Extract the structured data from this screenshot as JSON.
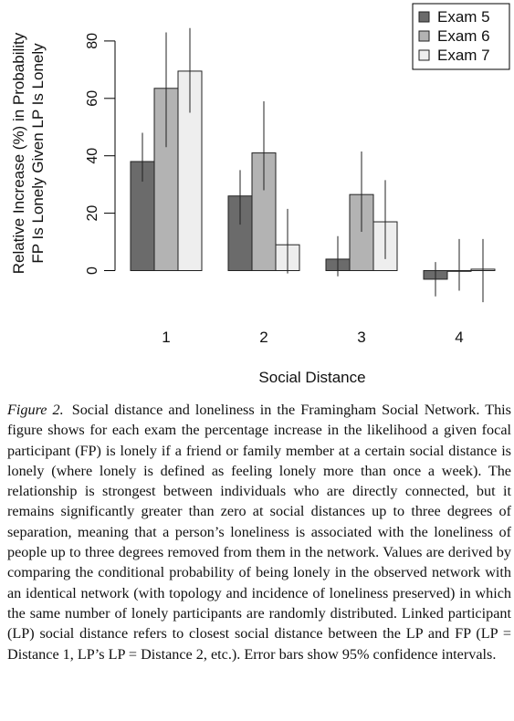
{
  "chart_data": {
    "type": "bar",
    "xlabel": "Social Distance",
    "ylabel_lines": [
      "Relative Increase (%) in Probability",
      "FP Is Lonely Given LP Is Lonely"
    ],
    "categories": [
      "1",
      "2",
      "3",
      "4"
    ],
    "yticks": [
      0,
      20,
      40,
      60,
      80
    ],
    "ylim": [
      -12,
      92
    ],
    "grid": false,
    "legend_position": "top-right",
    "series": [
      {
        "name": "Exam 5",
        "color": "#6b6b6b",
        "values": [
          38,
          26,
          4,
          -3
        ],
        "ci_low": [
          31,
          16,
          -2,
          -9
        ],
        "ci_high": [
          48,
          35,
          12,
          3
        ]
      },
      {
        "name": "Exam 6",
        "color": "#b3b3b3",
        "values": [
          63.5,
          41,
          26.5,
          0
        ],
        "ci_low": [
          43,
          28,
          13.5,
          -7
        ],
        "ci_high": [
          83,
          59,
          41.5,
          11
        ]
      },
      {
        "name": "Exam 7",
        "color": "#eeeeee",
        "values": [
          69.5,
          9,
          17,
          0.5
        ],
        "ci_low": [
          55,
          -1,
          4,
          -11
        ],
        "ci_high": [
          84.5,
          21.5,
          31.5,
          11
        ]
      }
    ]
  },
  "caption": {
    "label": "Figure 2.",
    "text": "Social distance and loneliness in the Framingham Social Network. This figure shows for each exam the percentage increase in the likelihood a given focal participant (FP) is lonely if a friend or family member at a certain social distance is lonely (where lonely is defined as feeling lonely more than once a week). The relationship is strongest between individuals who are directly connected, but it remains significantly greater than zero at social distances up to three degrees of separation, meaning that a person’s loneliness is associated with the loneliness of people up to three degrees removed from them in the network. Values are derived by comparing the conditional probability of being lonely in the observed network with an identical network (with topology and incidence of loneliness preserved) in which the same number of lonely participants are randomly distributed. Linked participant (LP) social distance refers to closest social distance between the LP and FP (LP = Distance 1, LP’s LP = Distance 2, etc.). Error bars show 95% confidence intervals."
  }
}
